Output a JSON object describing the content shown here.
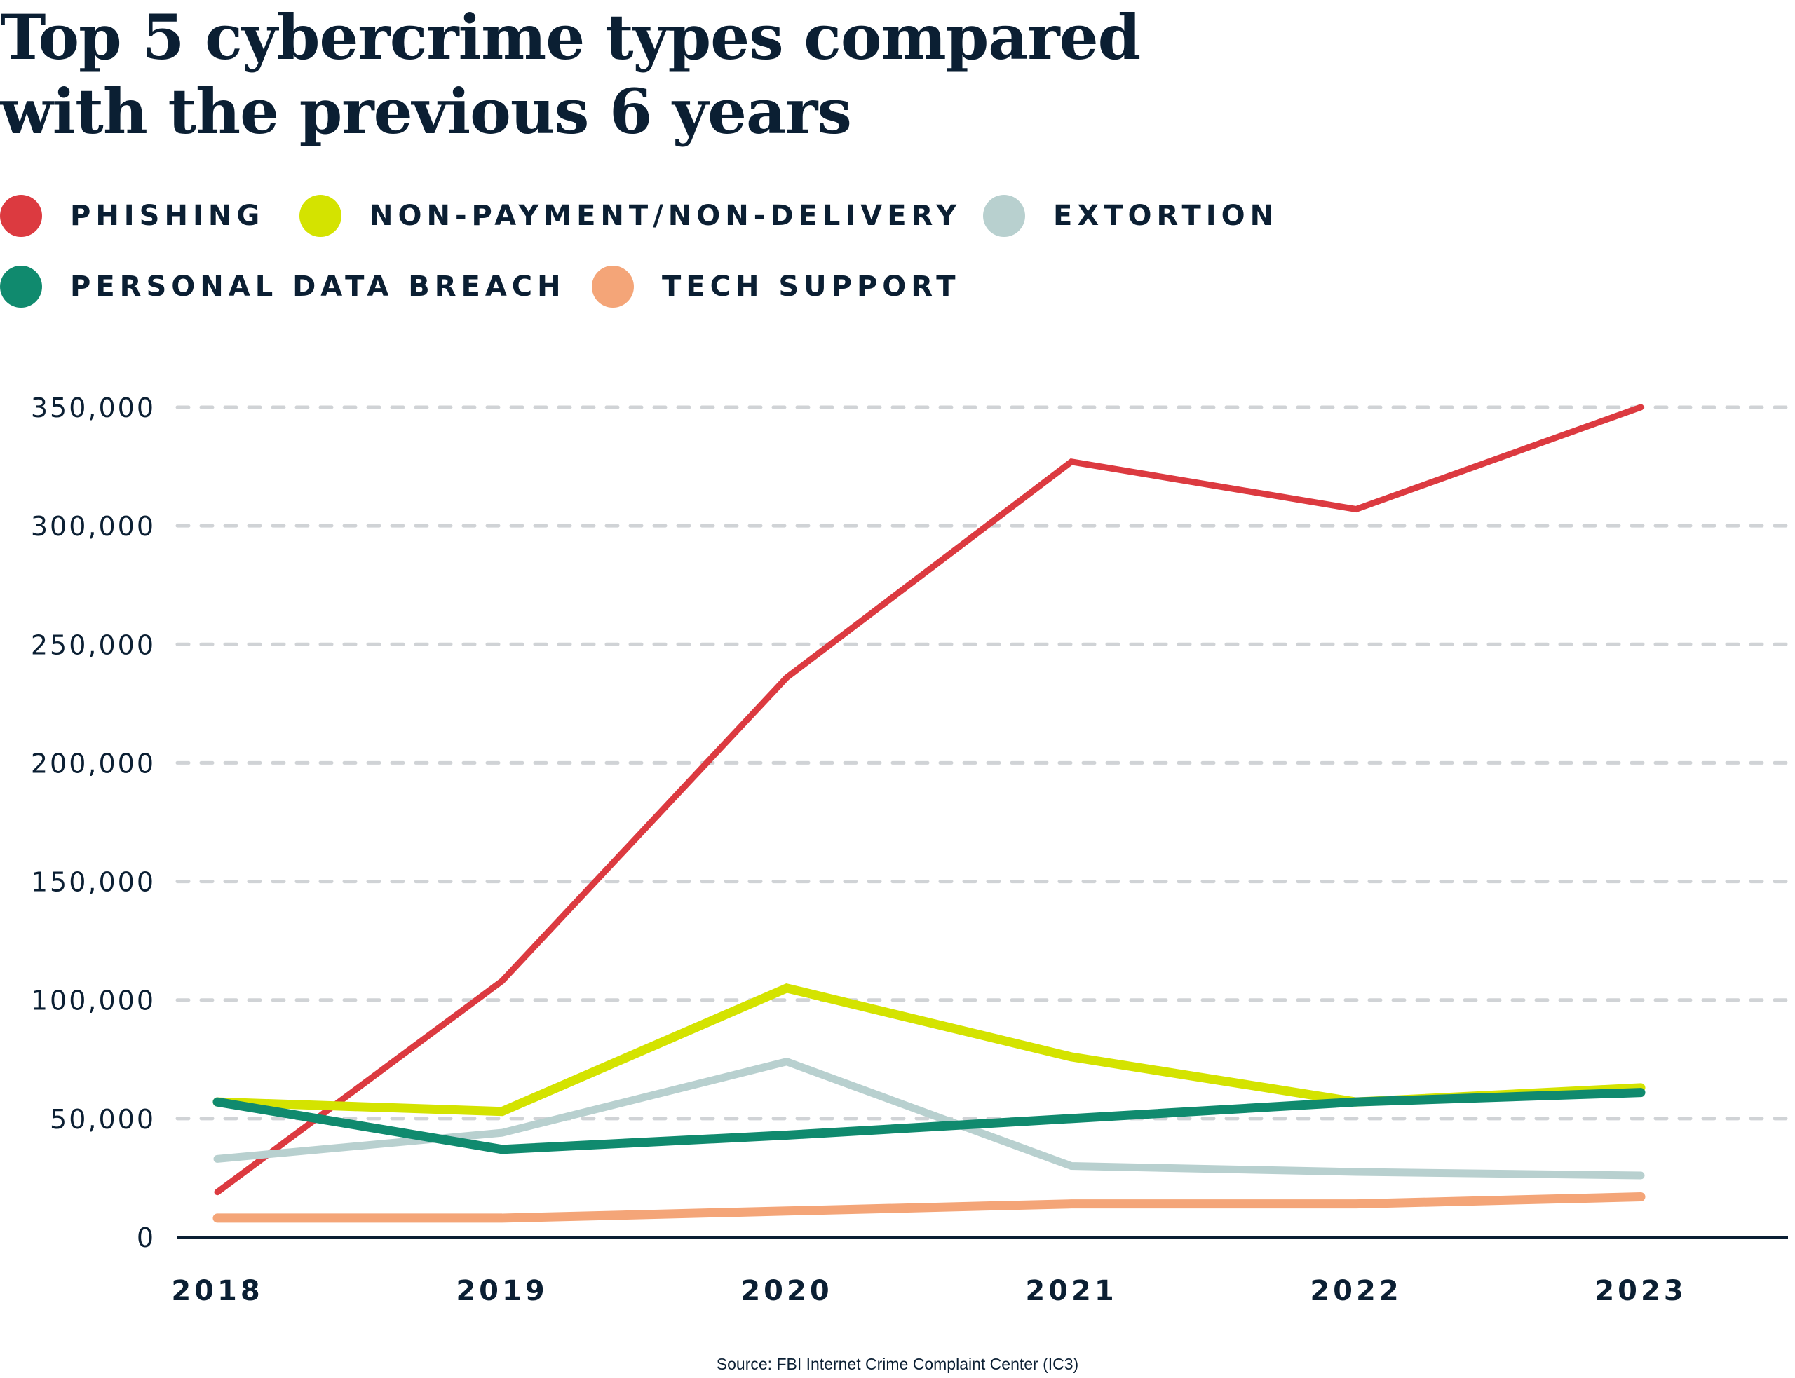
{
  "title_lines": [
    "Top 5 cybercrime types compared",
    "with the previous 6 years"
  ],
  "source": "Source: FBI Internet Crime Complaint Center (IC3)",
  "chart_data": {
    "type": "line",
    "title": "Top 5 cybercrime types compared with the previous 6 years",
    "x": [
      "2018",
      "2019",
      "2020",
      "2021",
      "2022",
      "2023"
    ],
    "ylim": [
      0,
      350000
    ],
    "yticks": [
      0,
      50000,
      100000,
      150000,
      200000,
      250000,
      300000,
      350000
    ],
    "ytick_labels": [
      "0",
      "50,000",
      "100,000",
      "150,000",
      "200,000",
      "250,000",
      "300,000",
      "350,000"
    ],
    "grid": "horizontal dashed",
    "legend_placement": "top-left",
    "axis_color": "#0b1f33",
    "grid_color": "#d0d3d6",
    "series": [
      {
        "name": "PHISHING",
        "color": "#dc3a40",
        "values": [
          19000,
          108000,
          236000,
          327000,
          307000,
          350000
        ]
      },
      {
        "name": "NON-PAYMENT/NON-DELIVERY",
        "color": "#d4e300",
        "values": [
          57000,
          53000,
          105000,
          76000,
          57000,
          63000
        ]
      },
      {
        "name": "EXTORTION",
        "color": "#b8d0cf",
        "values": [
          33000,
          44000,
          74000,
          30000,
          27500,
          26000
        ]
      },
      {
        "name": "PERSONAL DATA BREACH",
        "color": "#108a6e",
        "values": [
          57000,
          37000,
          43000,
          50000,
          57000,
          61000
        ]
      },
      {
        "name": "TECH SUPPORT",
        "color": "#f4a578",
        "values": [
          8000,
          8000,
          11000,
          14000,
          14000,
          17000
        ]
      }
    ]
  }
}
